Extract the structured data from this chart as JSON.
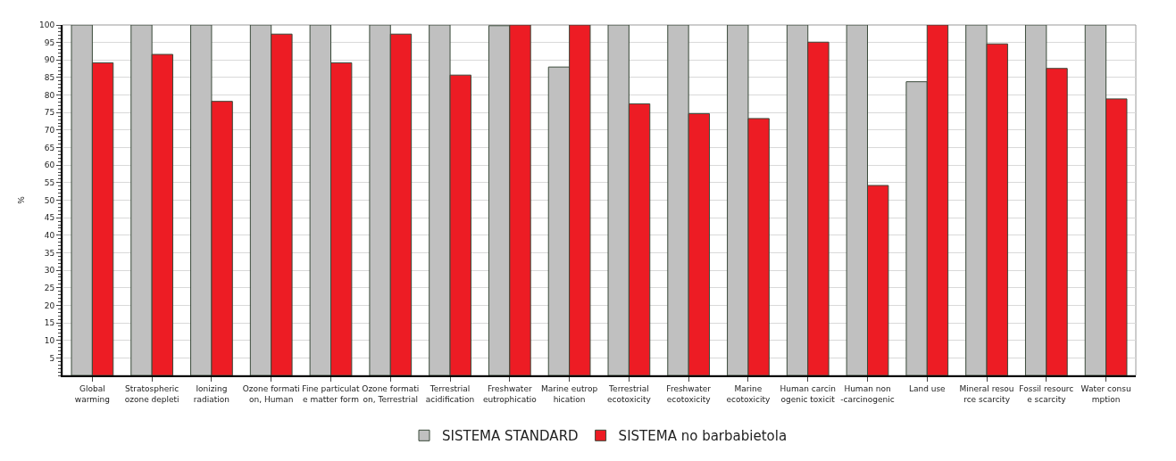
{
  "chart_data": {
    "type": "bar",
    "ylabel": "%",
    "categories": [
      "Global\nwarming",
      "Stratospheric\nozone depleti",
      "Ionizing\nradiation",
      "Ozone formati\non, Human",
      "Fine particulat\ne matter form",
      "Ozone formati\non, Terrestrial",
      "Terrestrial\nacidification",
      "Freshwater\neutrophicatio",
      "Marine eutrop\nhication",
      "Terrestrial\necotoxicity",
      "Freshwater\necotoxicity",
      "Marine\necotoxicity",
      "Human carcin\nogenic toxicit",
      "Human non\n-carcinogenic",
      "Land use",
      "Mineral resou\nrce scarcity",
      "Fossil resourc\ne scarcity",
      "Water consu\nmption"
    ],
    "series": [
      {
        "name": "SISTEMA STANDARD",
        "color": "#c0c0c0",
        "values": [
          100,
          100,
          100,
          100,
          100,
          100,
          100,
          99.8,
          88.0,
          100,
          100,
          100,
          100,
          100,
          83.8,
          100,
          100,
          100
        ]
      },
      {
        "name": "SISTEMA no barbabietola",
        "color": "#ed1c24",
        "values": [
          89.2,
          91.6,
          78.2,
          97.4,
          89.2,
          97.4,
          85.7,
          100,
          100,
          77.5,
          74.7,
          73.3,
          95.1,
          54.2,
          100,
          94.6,
          87.6,
          78.9
        ]
      }
    ],
    "ylim": [
      0,
      100
    ],
    "yticks": [
      5,
      10,
      15,
      20,
      25,
      30,
      35,
      40,
      45,
      50,
      55,
      60,
      65,
      70,
      75,
      80,
      85,
      90,
      95,
      100
    ],
    "grid": "y",
    "legend": "bottom"
  }
}
